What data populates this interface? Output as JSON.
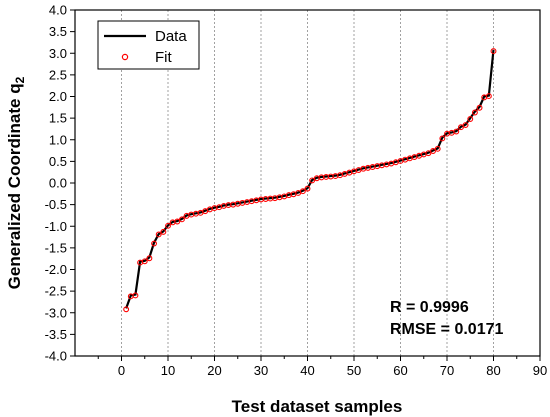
{
  "chart_data": {
    "type": "line",
    "xlabel": "Test dataset samples",
    "ylabel_main": "Generalized Coordinate q",
    "ylabel_sub": "2",
    "xlim": [
      -10,
      90
    ],
    "ylim": [
      -4.0,
      4.0
    ],
    "x_ticks": [
      0,
      10,
      20,
      30,
      40,
      50,
      60,
      70,
      80,
      90
    ],
    "y_ticks": [
      -4.0,
      -3.5,
      -3.0,
      -2.5,
      -2.0,
      -1.5,
      -1.0,
      -0.5,
      0.0,
      0.5,
      1.0,
      1.5,
      2.0,
      2.5,
      3.0,
      3.5,
      4.0
    ],
    "x_tick_labels": [
      "0",
      "10",
      "20",
      "30",
      "40",
      "50",
      "60",
      "70",
      "80",
      "90"
    ],
    "y_tick_labels": [
      "-4.0",
      "-3.5",
      "-3.0",
      "-2.5",
      "-2.0",
      "-1.5",
      "-1.0",
      "-0.5",
      "0.0",
      "0.5",
      "1.0",
      "1.5",
      "2.0",
      "2.5",
      "3.0",
      "3.5",
      "4.0"
    ],
    "grid": "vertical dotted at x ticks",
    "legend_position": "top-left",
    "series": [
      {
        "name": "Data",
        "style": "line",
        "color": "#000000",
        "x": [
          1,
          2,
          3,
          4,
          5,
          6,
          7,
          8,
          9,
          10,
          11,
          12,
          13,
          14,
          15,
          16,
          17,
          18,
          19,
          20,
          21,
          22,
          23,
          24,
          25,
          26,
          27,
          28,
          29,
          30,
          31,
          32,
          33,
          34,
          35,
          36,
          37,
          38,
          39,
          40,
          41,
          42,
          43,
          44,
          45,
          46,
          47,
          48,
          49,
          50,
          51,
          52,
          53,
          54,
          55,
          56,
          57,
          58,
          59,
          60,
          61,
          62,
          63,
          64,
          65,
          66,
          67,
          68,
          69,
          70,
          71,
          72,
          73,
          74,
          75,
          76,
          77,
          78,
          79,
          80
        ],
        "values": [
          -2.9,
          -2.6,
          -2.58,
          -1.82,
          -1.8,
          -1.72,
          -1.38,
          -1.18,
          -1.12,
          -0.98,
          -0.9,
          -0.88,
          -0.83,
          -0.75,
          -0.72,
          -0.7,
          -0.68,
          -0.64,
          -0.6,
          -0.57,
          -0.55,
          -0.52,
          -0.5,
          -0.49,
          -0.47,
          -0.45,
          -0.43,
          -0.41,
          -0.39,
          -0.37,
          -0.36,
          -0.35,
          -0.34,
          -0.32,
          -0.3,
          -0.27,
          -0.25,
          -0.22,
          -0.18,
          -0.12,
          0.07,
          0.12,
          0.14,
          0.15,
          0.16,
          0.17,
          0.19,
          0.22,
          0.25,
          0.28,
          0.31,
          0.34,
          0.36,
          0.38,
          0.4,
          0.42,
          0.44,
          0.46,
          0.49,
          0.52,
          0.55,
          0.58,
          0.61,
          0.64,
          0.67,
          0.7,
          0.75,
          0.8,
          1.05,
          1.15,
          1.17,
          1.2,
          1.3,
          1.35,
          1.5,
          1.65,
          1.76,
          2.0,
          2.02,
          3.08
        ]
      },
      {
        "name": "Fit",
        "style": "markers",
        "color": "#ff0000",
        "x": [
          1,
          2,
          3,
          4,
          5,
          6,
          7,
          8,
          9,
          10,
          11,
          12,
          13,
          14,
          15,
          16,
          17,
          18,
          19,
          20,
          21,
          22,
          23,
          24,
          25,
          26,
          27,
          28,
          29,
          30,
          31,
          32,
          33,
          34,
          35,
          36,
          37,
          38,
          39,
          40,
          41,
          42,
          43,
          44,
          45,
          46,
          47,
          48,
          49,
          50,
          51,
          52,
          53,
          54,
          55,
          56,
          57,
          58,
          59,
          60,
          61,
          62,
          63,
          64,
          65,
          66,
          67,
          68,
          69,
          70,
          71,
          72,
          73,
          74,
          75,
          76,
          77,
          78,
          79,
          80
        ],
        "values": [
          -2.92,
          -2.62,
          -2.6,
          -1.84,
          -1.81,
          -1.74,
          -1.4,
          -1.19,
          -1.13,
          -0.99,
          -0.91,
          -0.89,
          -0.84,
          -0.76,
          -0.73,
          -0.71,
          -0.69,
          -0.65,
          -0.61,
          -0.58,
          -0.56,
          -0.53,
          -0.51,
          -0.5,
          -0.48,
          -0.46,
          -0.44,
          -0.42,
          -0.4,
          -0.38,
          -0.37,
          -0.36,
          -0.35,
          -0.33,
          -0.31,
          -0.28,
          -0.26,
          -0.23,
          -0.19,
          -0.13,
          0.06,
          0.11,
          0.13,
          0.14,
          0.15,
          0.16,
          0.18,
          0.21,
          0.24,
          0.27,
          0.3,
          0.33,
          0.35,
          0.37,
          0.39,
          0.41,
          0.43,
          0.45,
          0.48,
          0.51,
          0.54,
          0.57,
          0.6,
          0.63,
          0.66,
          0.69,
          0.74,
          0.79,
          1.03,
          1.14,
          1.16,
          1.19,
          1.29,
          1.34,
          1.48,
          1.63,
          1.74,
          1.98,
          2.01,
          3.05
        ]
      }
    ],
    "legend": [
      {
        "label": "Data",
        "symbol": "line"
      },
      {
        "label": "Fit",
        "symbol": "circle"
      }
    ],
    "annotations": {
      "r_text": "R = 0.9996",
      "rmse_text": "RMSE = 0.0171"
    }
  }
}
